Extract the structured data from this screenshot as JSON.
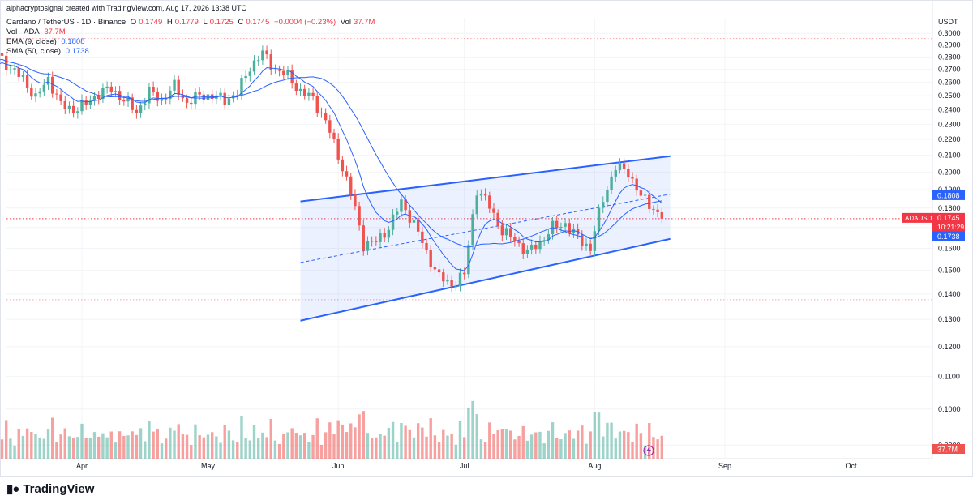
{
  "credit": "alphacryptosignal created with TradingView.com, Aug 17, 2026 13:38 UTC",
  "legend": {
    "symbol": "Cardano / TetherUS · 1D · Binance",
    "o_label": "O",
    "o": "0.1749",
    "h_label": "H",
    "h": "0.1779",
    "l_label": "L",
    "l": "0.1725",
    "c_label": "C",
    "c": "0.1745",
    "change": "−0.0004 (−0.23%)",
    "vol_label": "Vol",
    "vol": "37.7M",
    "vol_row_label": "Vol · ADA",
    "vol_row_value": "37.7M",
    "ema_label": "EMA (9, close)",
    "ema_value": "0.1808",
    "sma_label": "SMA (50, close)",
    "sma_value": "0.1738"
  },
  "axis_unit": "USDT",
  "brand": "TradingView",
  "colors": {
    "up": "#4caf9c",
    "down": "#ef5350",
    "channel": "#2962ff",
    "ma": "#2962ff",
    "price_tag": "#f23645"
  },
  "chart_data": {
    "type": "candlestick",
    "symbol": "ADAUSDT",
    "y_ticks": [
      "0.3000",
      "0.2900",
      "0.2800",
      "0.2700",
      "0.2600",
      "0.2500",
      "0.2400",
      "0.2300",
      "0.2200",
      "0.2100",
      "0.2000",
      "0.1900",
      "0.1800",
      "0.1700",
      "0.1600",
      "0.1500",
      "0.1400",
      "0.1300",
      "0.1200",
      "0.1100",
      "0.1000",
      "0.0900"
    ],
    "y_scale": "log",
    "ylim": [
      0.0865,
      0.314
    ],
    "x_labels": [
      {
        "label": "Apr",
        "date": "2026-04-01"
      },
      {
        "label": "May",
        "date": "2026-05-01"
      },
      {
        "label": "Jun",
        "date": "2026-06-01"
      },
      {
        "label": "Jul",
        "date": "2026-07-01"
      },
      {
        "label": "Aug",
        "date": "2026-08-01"
      },
      {
        "label": "Sep",
        "date": "2026-09-01"
      },
      {
        "label": "Oct",
        "date": "2026-10-01"
      }
    ],
    "close_series": [
      [
        "2026-03-09",
        0.272
      ],
      [
        "2026-03-12",
        0.283
      ],
      [
        "2026-03-15",
        0.27
      ],
      [
        "2026-03-18",
        0.263
      ],
      [
        "2026-03-21",
        0.248
      ],
      [
        "2026-03-24",
        0.263
      ],
      [
        "2026-03-27",
        0.243
      ],
      [
        "2026-03-30",
        0.24
      ],
      [
        "2026-04-02",
        0.244
      ],
      [
        "2026-04-05",
        0.252
      ],
      [
        "2026-04-08",
        0.255
      ],
      [
        "2026-04-11",
        0.247
      ],
      [
        "2026-04-14",
        0.238
      ],
      [
        "2026-04-17",
        0.253
      ],
      [
        "2026-04-20",
        0.247
      ],
      [
        "2026-04-23",
        0.257
      ],
      [
        "2026-04-26",
        0.245
      ],
      [
        "2026-04-29",
        0.25
      ],
      [
        "2026-05-02",
        0.25
      ],
      [
        "2026-05-05",
        0.247
      ],
      [
        "2026-05-08",
        0.252
      ],
      [
        "2026-05-11",
        0.272
      ],
      [
        "2026-05-14",
        0.283
      ],
      [
        "2026-05-17",
        0.27
      ],
      [
        "2026-05-20",
        0.265
      ],
      [
        "2026-05-23",
        0.253
      ],
      [
        "2026-05-26",
        0.248
      ],
      [
        "2026-05-29",
        0.232
      ],
      [
        "2026-06-01",
        0.21
      ],
      [
        "2026-06-04",
        0.188
      ],
      [
        "2026-06-07",
        0.162
      ],
      [
        "2026-06-10",
        0.163
      ],
      [
        "2026-06-13",
        0.17
      ],
      [
        "2026-06-16",
        0.183
      ],
      [
        "2026-06-19",
        0.172
      ],
      [
        "2026-06-22",
        0.158
      ],
      [
        "2026-06-25",
        0.147
      ],
      [
        "2026-06-28",
        0.144
      ],
      [
        "2026-07-01",
        0.148
      ],
      [
        "2026-07-04",
        0.19
      ],
      [
        "2026-07-07",
        0.181
      ],
      [
        "2026-07-10",
        0.168
      ],
      [
        "2026-07-13",
        0.164
      ],
      [
        "2026-07-16",
        0.158
      ],
      [
        "2026-07-19",
        0.163
      ],
      [
        "2026-07-22",
        0.17
      ],
      [
        "2026-07-25",
        0.172
      ],
      [
        "2026-07-28",
        0.165
      ],
      [
        "2026-07-31",
        0.16
      ],
      [
        "2026-08-03",
        0.185
      ],
      [
        "2026-08-06",
        0.203
      ],
      [
        "2026-08-09",
        0.2
      ],
      [
        "2026-08-12",
        0.186
      ],
      [
        "2026-08-15",
        0.18
      ],
      [
        "2026-08-17",
        0.1745
      ]
    ],
    "series": [
      {
        "name": "EMA (9, close)",
        "last": 0.1808
      },
      {
        "name": "SMA (50, close)",
        "last": 0.1738
      }
    ],
    "channel": {
      "upper": [
        [
          "2026-05-23",
          0.1835
        ],
        [
          "2026-08-19",
          0.2095
        ]
      ],
      "mid": [
        [
          "2026-05-23",
          0.1535
        ],
        [
          "2026-08-19",
          0.1875
        ]
      ],
      "lower": [
        [
          "2026-05-23",
          0.1295
        ],
        [
          "2026-08-19",
          0.1645
        ]
      ]
    },
    "price_tags": [
      {
        "label": "0.1808",
        "value": 0.1808,
        "color": "#2962ff"
      },
      {
        "label": "ADAUSDT",
        "value": 0.1745,
        "price": "0.1745",
        "countdown": "10:21:29",
        "color": "#f23645"
      },
      {
        "label": "0.1738",
        "value": 0.1738,
        "color": "#2962ff"
      }
    ],
    "volume_tag": "37.7M",
    "last_volume": 37.7,
    "dotted_levels": [
      0.2955,
      0.1745,
      0.1377
    ]
  }
}
